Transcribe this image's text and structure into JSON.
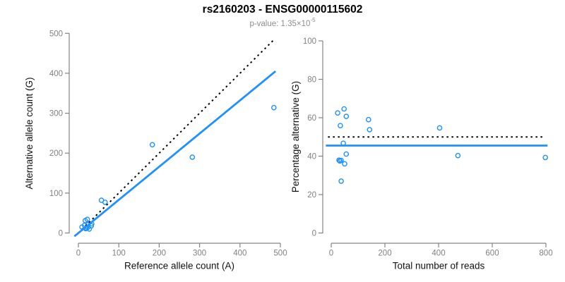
{
  "header": {
    "title": "rs2160203 - ENSG00000115602",
    "pvalue_prefix": "p-value: 1.35×10",
    "pvalue_exponent": "-5"
  },
  "colors": {
    "point": "#1E90FF",
    "fit_line": "#1E90FF",
    "reference_line": "#000000",
    "axis": "#848484",
    "tick_label": "#808080",
    "axis_label": "#111111",
    "title": "#000000",
    "subtitle": "#8C8C8C"
  },
  "chart_data": [
    {
      "type": "scatter",
      "name": "allele-count-scatter",
      "xlabel": "Reference allele count (A)",
      "ylabel": "Alternative allele count (G)",
      "xlim": [
        0,
        500
      ],
      "ylim": [
        0,
        500
      ],
      "xticks": [
        0,
        100,
        200,
        300,
        400,
        500
      ],
      "yticks": [
        0,
        100,
        200,
        300,
        400,
        500
      ],
      "grid": false,
      "points": [
        [
          9,
          15
        ],
        [
          17,
          31
        ],
        [
          22,
          34
        ],
        [
          15,
          19
        ],
        [
          24,
          21
        ],
        [
          33,
          23
        ],
        [
          20,
          12
        ],
        [
          23,
          14
        ],
        [
          32,
          18
        ],
        [
          18,
          11
        ],
        [
          27,
          10
        ],
        [
          57,
          82
        ],
        [
          66,
          77
        ],
        [
          183,
          221
        ],
        [
          282,
          190
        ],
        [
          484,
          314
        ]
      ],
      "lines": [
        {
          "name": "identity-line",
          "style": "dashed",
          "color": "#000000",
          "x": [
            0,
            482
          ],
          "y": [
            0,
            482
          ]
        },
        {
          "name": "fit-line",
          "style": "solid",
          "color": "#1E90FF",
          "x": [
            -10,
            488
          ],
          "y": [
            -8.3,
            405
          ]
        }
      ]
    },
    {
      "type": "scatter",
      "name": "percentage-vs-reads-scatter",
      "xlabel": "Total number of reads",
      "ylabel": "Percentage alternative (G)",
      "xlim": [
        0,
        800
      ],
      "ylim": [
        0,
        100
      ],
      "xticks": [
        0,
        200,
        400,
        600,
        800
      ],
      "yticks": [
        0,
        20,
        40,
        60,
        80,
        100
      ],
      "grid": false,
      "points": [
        [
          24,
          62.5
        ],
        [
          48,
          64.6
        ],
        [
          56,
          60.7
        ],
        [
          34,
          55.9
        ],
        [
          45,
          46.7
        ],
        [
          56,
          41.1
        ],
        [
          32,
          37.5
        ],
        [
          37,
          37.8
        ],
        [
          50,
          36.0
        ],
        [
          29,
          37.9
        ],
        [
          37,
          27.0
        ],
        [
          139,
          59.0
        ],
        [
          143,
          53.8
        ],
        [
          404,
          54.7
        ],
        [
          472,
          40.3
        ],
        [
          798,
          39.3
        ]
      ],
      "lines": [
        {
          "name": "expected-50pct-line",
          "style": "dotted",
          "color": "#000000",
          "x": [
            -12,
            792
          ],
          "y": [
            50,
            50
          ]
        },
        {
          "name": "fit-line",
          "style": "solid",
          "color": "#1E90FF",
          "x": [
            -20,
            806
          ],
          "y": [
            45.5,
            45.5
          ]
        }
      ]
    }
  ]
}
